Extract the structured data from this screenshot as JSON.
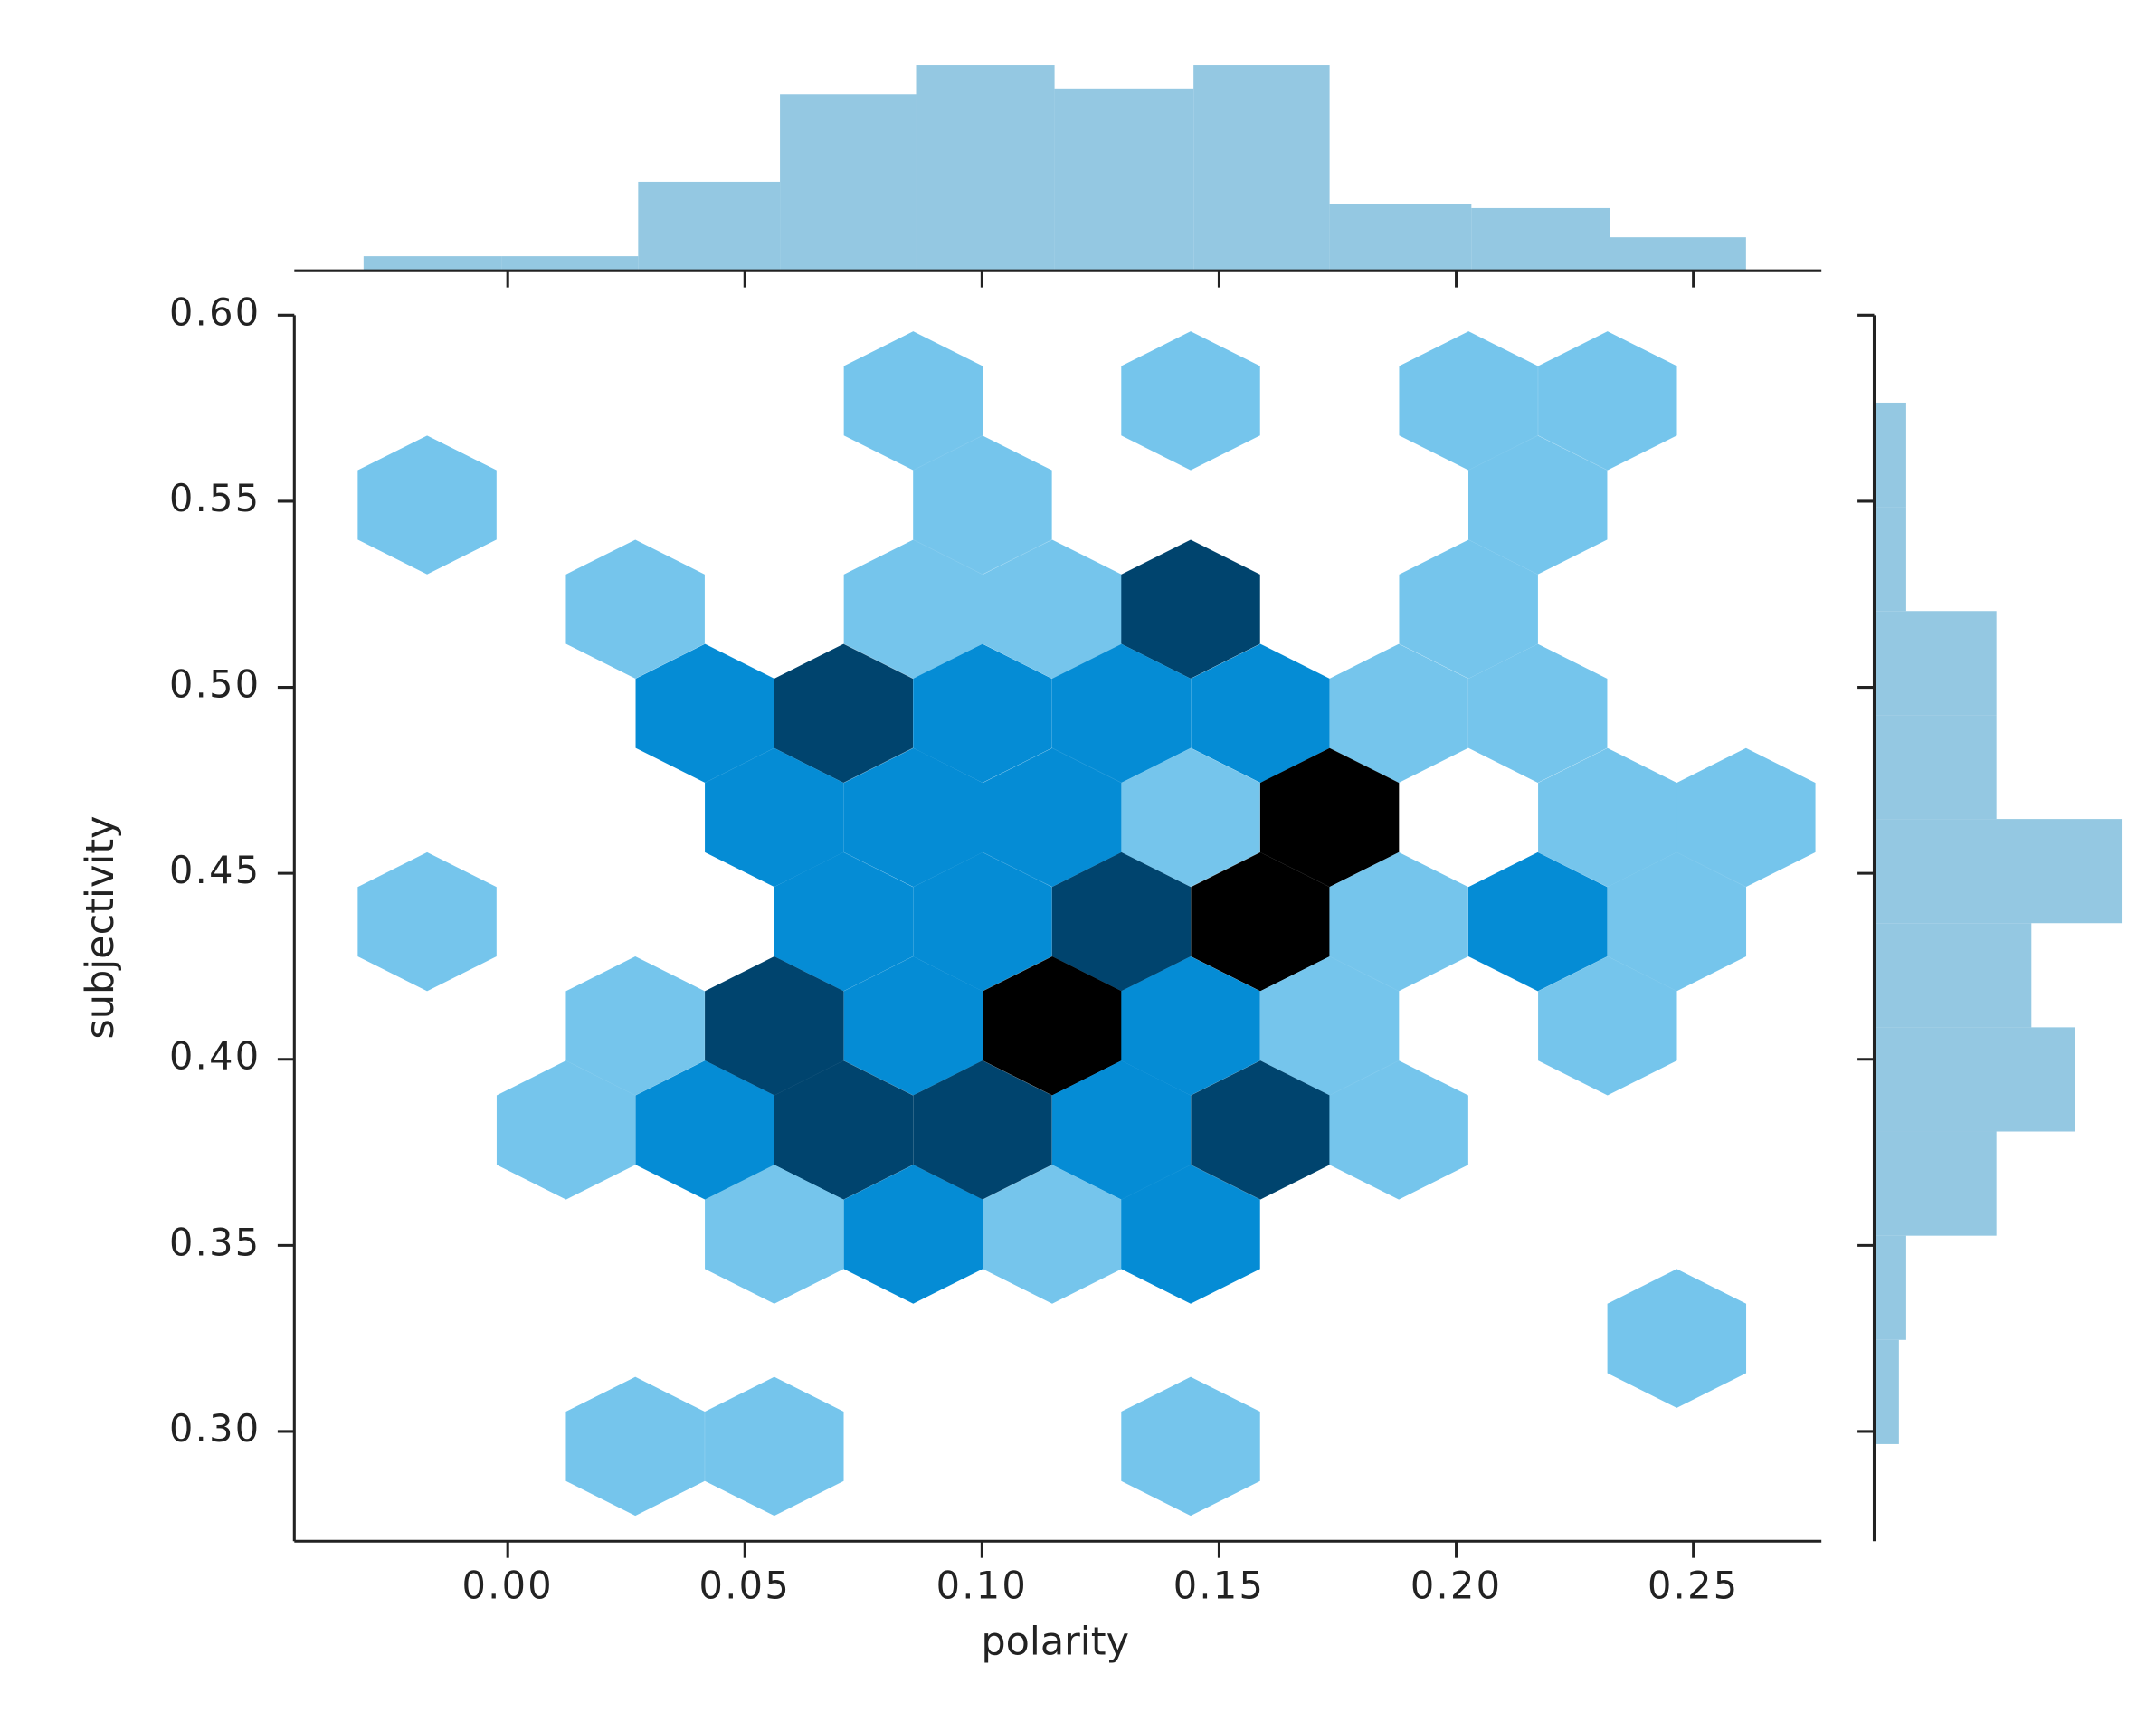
{
  "chart_data": {
    "type": "hexbin",
    "x_label": "polarity",
    "y_label": "subjectivity",
    "xlim": [
      -0.045,
      0.277
    ],
    "ylim": [
      0.2705,
      0.6
    ],
    "xticks": [
      {
        "value": 0,
        "label": "0.00"
      },
      0.05,
      {
        "value": 0.1,
        "label": "0.10"
      },
      0.15,
      {
        "value": 0.2,
        "label": "0.20"
      },
      0.25
    ],
    "yticks": [
      {
        "value": 0.3,
        "label": "0.30"
      },
      0.35,
      {
        "value": 0.4,
        "label": "0.40"
      },
      0.45,
      {
        "value": 0.5,
        "label": "0.50"
      },
      0.55,
      {
        "value": 0.6,
        "label": "0.60"
      }
    ],
    "color_levels": [
      "#75c5ec",
      "#058cd5",
      "#00446e",
      "#000000"
    ],
    "hexes": {
      "x": [
        0.0855,
        0.144,
        0.2026,
        0.2319,
        -0.017,
        0.1001,
        0.2172,
        0.0269,
        0.0855,
        0.1148,
        0.144,
        0.2026,
        0.0416,
        0.0708,
        0.1001,
        0.1294,
        0.1587,
        0.1879,
        0.2172,
        0.0562,
        0.0855,
        0.1148,
        0.144,
        0.1733,
        0.2319,
        0.2611,
        -0.017,
        0.0708,
        0.1001,
        0.1294,
        0.1587,
        0.1879,
        0.2172,
        0.2465,
        0.0269,
        0.0562,
        0.0855,
        0.1148,
        0.144,
        0.1733,
        0.2319,
        0.0123,
        0.0416,
        0.0708,
        0.1001,
        0.1294,
        0.1587,
        0.1879,
        0.0562,
        0.0855,
        0.1148,
        0.144,
        0.2465,
        0.0269,
        0.0562,
        0.144
      ],
      "y": [
        0.577,
        0.577,
        0.577,
        0.577,
        0.549,
        0.549,
        0.549,
        0.521,
        0.521,
        0.521,
        0.521,
        0.521,
        0.493,
        0.493,
        0.493,
        0.493,
        0.493,
        0.493,
        0.493,
        0.465,
        0.465,
        0.465,
        0.465,
        0.465,
        0.465,
        0.465,
        0.437,
        0.437,
        0.437,
        0.437,
        0.437,
        0.437,
        0.437,
        0.437,
        0.409,
        0.409,
        0.409,
        0.409,
        0.409,
        0.409,
        0.409,
        0.381,
        0.381,
        0.381,
        0.381,
        0.381,
        0.381,
        0.381,
        0.353,
        0.353,
        0.353,
        0.353,
        0.325,
        0.296,
        0.296,
        0.296
      ],
      "counts": [
        1,
        1,
        1,
        1,
        1,
        1,
        1,
        1,
        1,
        1,
        3,
        1,
        2,
        3,
        2,
        2,
        2,
        1,
        1,
        2,
        2,
        2,
        1,
        4,
        1,
        1,
        1,
        2,
        2,
        3,
        4,
        1,
        2,
        1,
        1,
        3,
        2,
        4,
        2,
        1,
        1,
        1,
        2,
        3,
        3,
        2,
        3,
        1,
        1,
        2,
        1,
        2,
        1,
        1,
        1,
        1
      ]
    },
    "top_hist": {
      "color": "#94c8e2",
      "bins": [
        -0.0304,
        -0.0012,
        0.0275,
        0.0574,
        0.0861,
        0.1153,
        0.1446,
        0.1733,
        0.2032,
        0.2324,
        0.2611
      ],
      "counts": [
        1,
        1,
        6.1,
        12.1,
        14.1,
        12.5,
        14.1,
        4.6,
        4.3,
        2.3
      ],
      "count_lim": [
        0,
        15
      ]
    },
    "right_hist": {
      "color": "#94c8e2",
      "bins": [
        0.5765,
        0.5485,
        0.5205,
        0.4925,
        0.4646,
        0.4366,
        0.4086,
        0.3806,
        0.3526,
        0.3246,
        0.2966
      ],
      "counts": [
        2.2,
        2.2,
        8.4,
        8.4,
        17,
        10.8,
        13.8,
        8.4,
        2.2,
        1.7
      ],
      "count_lim": [
        0,
        18.5
      ]
    }
  }
}
